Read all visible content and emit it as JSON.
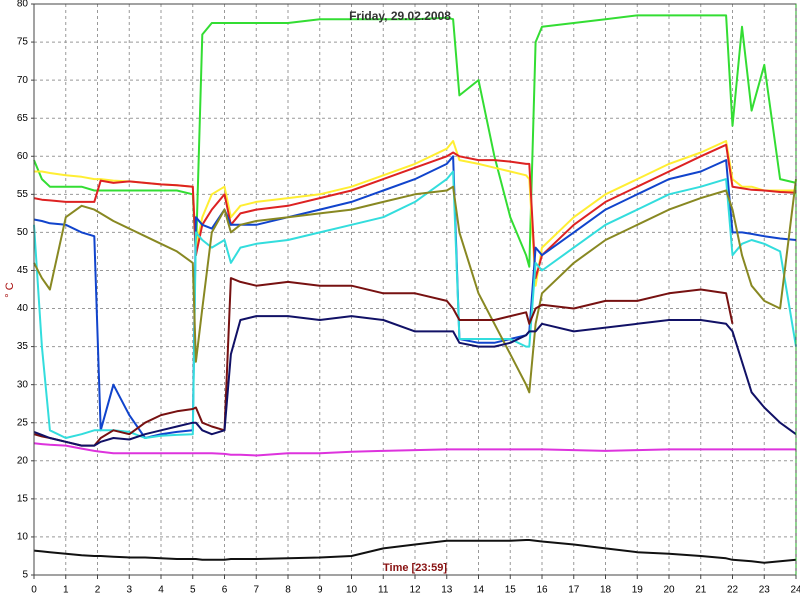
{
  "chart_data": {
    "type": "line",
    "title": "Friday, 29.02.2008",
    "x_label": "Time [23:59]",
    "y_label": "° C",
    "x": [
      0,
      0.25,
      0.5,
      1,
      1.5,
      1.9,
      2.1,
      2.5,
      3,
      3.5,
      4,
      4.5,
      5,
      5.1,
      5.3,
      5.6,
      6,
      6.2,
      6.5,
      7,
      8,
      9,
      10,
      11,
      12,
      13,
      13.2,
      13.4,
      14,
      14.5,
      15,
      15.5,
      15.6,
      15.8,
      16,
      17,
      18,
      19,
      20,
      21,
      21.8,
      22,
      22.3,
      22.6,
      23,
      23.5,
      24
    ],
    "xlim": [
      0,
      24
    ],
    "xticks": [
      0,
      1,
      2,
      3,
      4,
      5,
      6,
      7,
      8,
      9,
      10,
      11,
      12,
      13,
      14,
      15,
      16,
      17,
      18,
      19,
      20,
      21,
      22,
      23,
      24
    ],
    "ylim": [
      5,
      80
    ],
    "yticks": [
      5,
      10,
      15,
      20,
      25,
      30,
      35,
      40,
      45,
      50,
      55,
      60,
      65,
      70,
      75,
      80
    ],
    "grid": true,
    "series": [
      {
        "color": "#33dd33",
        "values": [
          59.5,
          57,
          56,
          56,
          56,
          55.5,
          55.5,
          55.5,
          55.5,
          55.5,
          55.5,
          55.5,
          55,
          47,
          76,
          77.5,
          77.5,
          77.5,
          77.5,
          77.5,
          77.5,
          78,
          78,
          78,
          78,
          78.2,
          78,
          68,
          70,
          60,
          52,
          47,
          45.5,
          75,
          77,
          77.5,
          78,
          78.5,
          78.5,
          78.5,
          78.5,
          64,
          77,
          66,
          72,
          57,
          56.5
        ]
      },
      {
        "color": "#ffee33",
        "values": [
          58,
          58,
          57.8,
          57.5,
          57.3,
          57,
          57,
          56.8,
          56.7,
          56.5,
          56.3,
          56.2,
          56,
          48,
          52,
          55,
          56,
          52,
          53.5,
          54,
          54.5,
          55,
          56,
          57.5,
          59,
          61,
          62,
          59.5,
          59,
          58.5,
          58,
          57.5,
          57,
          43,
          48,
          52,
          55,
          57,
          59,
          60.5,
          62,
          57,
          56,
          56,
          55.5,
          55.5,
          55.5
        ]
      },
      {
        "color": "#dd2222",
        "values": [
          54.5,
          54.3,
          54.2,
          54,
          54,
          54,
          56.8,
          56.5,
          56.7,
          56.5,
          56.3,
          56.2,
          56,
          47,
          51,
          53,
          55,
          51,
          52.5,
          53,
          53.5,
          54.5,
          55.5,
          57,
          58.5,
          60,
          60.5,
          60,
          59.5,
          59.5,
          59.3,
          59,
          59,
          44,
          47,
          51,
          54,
          56,
          58,
          60,
          61.5,
          56,
          55.8,
          55.6,
          55.5,
          55.3,
          55.2
        ]
      },
      {
        "color": "#1144cc",
        "values": [
          51.7,
          51.5,
          51.2,
          51,
          50,
          49.5,
          24,
          30,
          26,
          23,
          23.5,
          23.8,
          24,
          52,
          51,
          50.5,
          53,
          51,
          51,
          51,
          52,
          53,
          54,
          55.5,
          57,
          59,
          60,
          36,
          35.5,
          35.5,
          36,
          36.5,
          37,
          48,
          47,
          50,
          53,
          55,
          57,
          58,
          59.5,
          50,
          50,
          49.8,
          49.5,
          49.2,
          49
        ]
      },
      {
        "color": "#33dddd",
        "values": [
          51,
          35,
          24,
          23,
          23.5,
          24,
          24,
          24,
          23.8,
          23,
          23.3,
          23.4,
          23.5,
          50,
          49,
          48,
          49,
          46,
          48,
          48.5,
          49,
          50,
          51,
          52,
          54,
          57,
          58,
          36,
          36,
          36,
          36,
          35,
          35,
          46,
          45,
          48,
          51,
          53,
          55,
          56,
          57,
          47,
          48.5,
          49,
          48.5,
          47.5,
          35
        ]
      },
      {
        "color": "#888822",
        "values": [
          46,
          44,
          42.5,
          52,
          53.5,
          53,
          52.5,
          51.5,
          50.5,
          49.5,
          48.5,
          47.5,
          46,
          33,
          40,
          50,
          53,
          50,
          51,
          51.5,
          52,
          52.5,
          53,
          54,
          55,
          55.5,
          56,
          50,
          42,
          38,
          34,
          30,
          29,
          38,
          42,
          46,
          49,
          51,
          53,
          54.5,
          55.5,
          53,
          47,
          43,
          41,
          40,
          57
        ]
      },
      {
        "color": "#771111",
        "values": [
          23.5,
          23.2,
          23,
          22.5,
          22,
          22,
          23,
          24,
          23.5,
          25,
          26,
          26.5,
          26.8,
          27,
          25,
          24.5,
          24,
          44,
          43.5,
          43,
          43.5,
          43,
          43,
          42,
          42,
          41,
          40,
          38.5,
          38.5,
          38.5,
          39,
          39.5,
          38,
          40,
          40.5,
          40,
          41,
          41,
          42,
          42.5,
          42,
          38,
          null,
          null,
          null,
          null,
          null
        ]
      },
      {
        "color": "#111166",
        "values": [
          23.8,
          23.4,
          23,
          22.5,
          22,
          22,
          22.5,
          23,
          22.8,
          23.5,
          24,
          24.5,
          25,
          25,
          24,
          23.5,
          24,
          34,
          38.5,
          39,
          39,
          38.5,
          39,
          38.5,
          37,
          37,
          37,
          35.5,
          35,
          35,
          35.5,
          36.5,
          37,
          37,
          38,
          37,
          37.5,
          38,
          38.5,
          38.5,
          38,
          37,
          33,
          29,
          27,
          25,
          23.5
        ]
      },
      {
        "color": "#dd33dd",
        "values": [
          22.3,
          22.2,
          22.1,
          22,
          21.6,
          21.3,
          21.2,
          21,
          21,
          21,
          21,
          21,
          21,
          21,
          21,
          21,
          20.9,
          20.8,
          20.8,
          20.7,
          21,
          21,
          21.2,
          21.3,
          21.4,
          21.5,
          21.5,
          21.5,
          21.5,
          21.5,
          21.5,
          21.5,
          21.5,
          21.5,
          21.5,
          21.4,
          21.3,
          21.4,
          21.5,
          21.5,
          21.5,
          21.5,
          21.5,
          21.5,
          21.5,
          21.5,
          21.5
        ]
      },
      {
        "color": "#111111",
        "values": [
          8.2,
          8.1,
          8,
          7.8,
          7.6,
          7.5,
          7.5,
          7.4,
          7.3,
          7.3,
          7.2,
          7.1,
          7.1,
          7.1,
          7,
          7,
          7,
          7.1,
          7.1,
          7.1,
          7.2,
          7.3,
          7.5,
          8.5,
          9,
          9.5,
          9.5,
          9.5,
          9.5,
          9.5,
          9.5,
          9.6,
          9.6,
          9.5,
          9.4,
          9,
          8.5,
          8,
          7.8,
          7.5,
          7.2,
          7,
          6.9,
          6.8,
          6.6,
          6.8,
          7
        ]
      }
    ]
  }
}
